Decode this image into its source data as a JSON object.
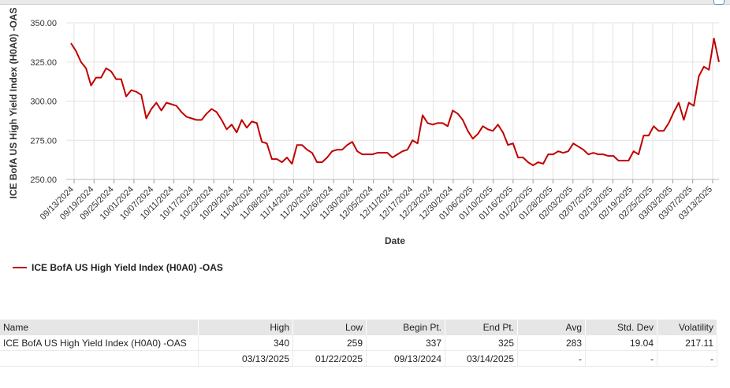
{
  "chart_data": {
    "type": "line",
    "ylabel": "ICE BofA US High Yield Index (H0A0) -OAS",
    "xlabel": "Date",
    "ylim": [
      250,
      350
    ],
    "yticks": [
      "350.00",
      "325.00",
      "300.00",
      "275.00",
      "250.00"
    ],
    "xtick_labels": [
      "09/13/2024",
      "09/19/2024",
      "09/25/2024",
      "10/01/2024",
      "10/07/2024",
      "10/11/2024",
      "10/17/2024",
      "10/23/2024",
      "10/29/2024",
      "11/04/2024",
      "11/08/2024",
      "11/14/2024",
      "11/20/2024",
      "11/26/2024",
      "11/30/2024",
      "12/05/2024",
      "12/11/2024",
      "12/17/2024",
      "12/23/2024",
      "12/30/2024",
      "01/06/2025",
      "01/10/2025",
      "01/16/2025",
      "01/22/2025",
      "01/28/2025",
      "02/03/2025",
      "02/07/2025",
      "02/13/2025",
      "02/19/2025",
      "02/25/2025",
      "03/03/2025",
      "03/07/2025",
      "03/13/2025"
    ],
    "grid": true,
    "legend_placement": "bottom-left",
    "series": [
      {
        "name": "ICE BofA US High Yield Index (H0A0) -OAS",
        "color": "#c00000",
        "values": [
          337,
          332,
          325,
          321,
          310,
          315,
          315,
          321,
          319,
          314,
          314,
          303,
          307,
          306,
          304,
          289,
          295,
          299,
          294,
          299,
          298,
          297,
          293,
          290,
          289,
          288,
          288,
          292,
          295,
          293,
          288,
          282,
          285,
          280,
          288,
          283,
          287,
          286,
          274,
          273,
          263,
          263,
          261,
          264,
          260,
          272,
          272,
          269,
          267,
          261,
          261,
          264,
          268,
          269,
          269,
          272,
          274,
          268,
          266,
          266,
          266,
          267,
          267,
          267,
          264,
          266,
          268,
          269,
          275,
          273,
          291,
          286,
          285,
          286,
          286,
          284,
          294,
          292,
          288,
          281,
          276,
          279,
          284,
          282,
          281,
          285,
          280,
          272,
          273,
          264,
          264,
          261,
          259,
          261,
          260,
          266,
          266,
          268,
          267,
          268,
          273,
          271,
          269,
          266,
          267,
          266,
          266,
          265,
          265,
          262,
          262,
          262,
          268,
          266,
          278,
          278,
          284,
          281,
          281,
          286,
          293,
          299,
          288,
          299,
          297,
          316,
          322,
          320,
          340,
          325
        ]
      }
    ]
  },
  "legend": {
    "label": "ICE BofA US High Yield Index (H0A0) -OAS",
    "color": "#c00000"
  },
  "stats_table": {
    "headers": {
      "name": "Name",
      "high": "High",
      "low": "Low",
      "begin": "Begin Pt.",
      "end": "End Pt.",
      "avg": "Avg",
      "std": "Std. Dev",
      "vol": "Volatility"
    },
    "row1": {
      "name": "ICE BofA US High Yield Index (H0A0) -OAS",
      "high": "340",
      "low": "259",
      "begin": "337",
      "end": "325",
      "avg": "283",
      "std": "19.04",
      "vol": "217.11"
    },
    "row2": {
      "name": "",
      "high": "03/13/2025",
      "low": "01/22/2025",
      "begin": "09/13/2024",
      "end": "03/14/2025",
      "avg": "-",
      "std": "-",
      "vol": "-"
    }
  }
}
